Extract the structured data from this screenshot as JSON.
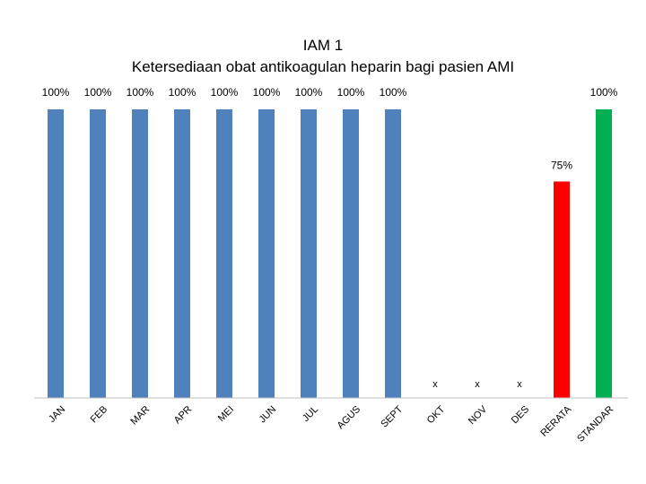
{
  "chart_data": {
    "type": "bar",
    "title": "IAM 1",
    "subtitle": "Ketersediaan obat antikoagulan heparin bagi pasien AMI",
    "xlabel": "",
    "ylabel": "",
    "ylim": [
      0,
      100
    ],
    "grid": false,
    "legend": "none",
    "categories": [
      "JAN",
      "FEB",
      "MAR",
      "APR",
      "MEI",
      "JUN",
      "JUL",
      "AGUS",
      "SEPT",
      "OKT",
      "NOV",
      "DES",
      "RERATA",
      "STANDAR"
    ],
    "values": [
      100,
      100,
      100,
      100,
      100,
      100,
      100,
      100,
      100,
      null,
      null,
      null,
      75,
      100
    ],
    "data_labels": [
      "100%",
      "100%",
      "100%",
      "100%",
      "100%",
      "100%",
      "100%",
      "100%",
      "100%",
      "x",
      "x",
      "x",
      "75%",
      "100%"
    ],
    "colors": [
      "#4f81bd",
      "#4f81bd",
      "#4f81bd",
      "#4f81bd",
      "#4f81bd",
      "#4f81bd",
      "#4f81bd",
      "#4f81bd",
      "#4f81bd",
      "#4f81bd",
      "#4f81bd",
      "#4f81bd",
      "#ff0000",
      "#00b050"
    ]
  }
}
